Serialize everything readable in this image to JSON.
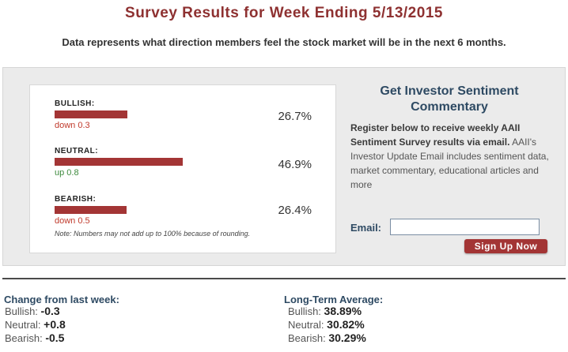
{
  "page": {
    "title": "Survey Results for Week Ending 5/13/2015",
    "subtitle": "Data represents what direction members feel the stock market will be in the next 6 months."
  },
  "sentiment": {
    "bar_color": "#a33535",
    "up_color": "#3d8a3d",
    "down_color": "#c0392b",
    "rows": [
      {
        "label": "BULLISH:",
        "percent": "26.7%",
        "value": 26.7,
        "change": "down 0.3",
        "direction": "down"
      },
      {
        "label": "NEUTRAL:",
        "percent": "46.9%",
        "value": 46.9,
        "change": "up 0.8",
        "direction": "up"
      },
      {
        "label": "BEARISH:",
        "percent": "26.4%",
        "value": 26.4,
        "change": "down 0.5",
        "direction": "down"
      }
    ],
    "note": "Note: Numbers may not add up to 100% because of rounding."
  },
  "cta": {
    "title": "Get Investor Sentiment Commentary",
    "body_bold": "Register below to receive weekly AAII Sentiment Survey results via email.",
    "body_rest": " AAII's Investor Update Email includes sentiment data, market commentary, educational articles and more",
    "email_label": "Email:",
    "email_value": "",
    "button_label": "Sign Up Now"
  },
  "change_from_last_week": {
    "heading": "Change from last week:",
    "items": [
      {
        "label": "Bullish:",
        "value": "-0.3"
      },
      {
        "label": "Neutral:",
        "value": "+0.8"
      },
      {
        "label": "Bearish:",
        "value": "-0.5"
      }
    ]
  },
  "long_term_average": {
    "heading": "Long-Term Average:",
    "items": [
      {
        "label": "Bullish:",
        "value": "38.89%"
      },
      {
        "label": "Neutral:",
        "value": "30.82%"
      },
      {
        "label": "Bearish:",
        "value": "30.29%"
      }
    ]
  }
}
